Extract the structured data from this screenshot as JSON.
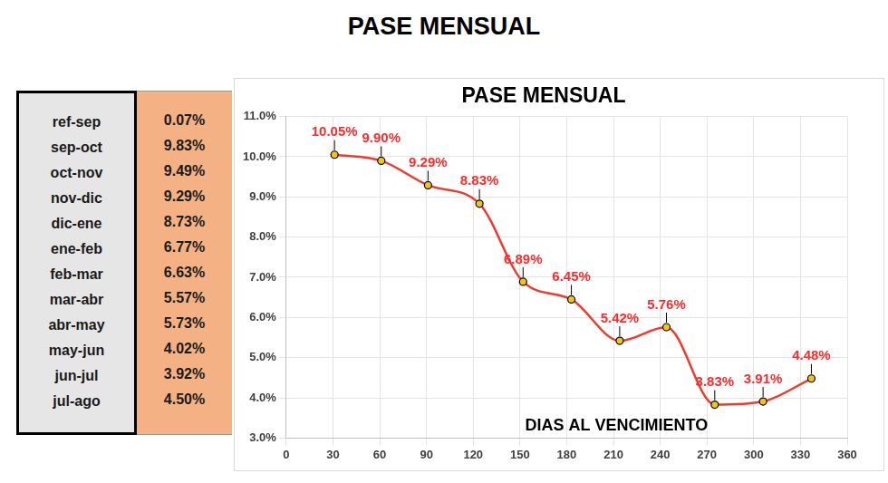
{
  "header": {
    "title": "PASE MENSUAL"
  },
  "table": {
    "rows": [
      [
        "ref-sep",
        "0.07%"
      ],
      [
        "sep-oct",
        "9.83%"
      ],
      [
        "oct-nov",
        "9.49%"
      ],
      [
        "nov-dic",
        "9.29%"
      ],
      [
        "dic-ene",
        "8.73%"
      ],
      [
        "ene-feb",
        "6.77%"
      ],
      [
        "feb-mar",
        "6.63%"
      ],
      [
        "mar-abr",
        "5.57%"
      ],
      [
        "abr-may",
        "5.73%"
      ],
      [
        "may-jun",
        "4.02%"
      ],
      [
        "jun-jul",
        "3.92%"
      ],
      [
        "jul-ago",
        "4.50%"
      ]
    ]
  },
  "chart_data": {
    "type": "line",
    "title": "PASE MENSUAL",
    "x_label": "DIAS AL VENCIMIENTO",
    "x": [
      31,
      61,
      91,
      124,
      152,
      183,
      214,
      244,
      275,
      306,
      337
    ],
    "values": [
      10.05,
      9.9,
      9.29,
      8.83,
      6.89,
      6.45,
      5.42,
      5.76,
      3.83,
      3.91,
      4.48
    ],
    "value_labels": [
      "10.05%",
      "9.90%",
      "9.29%",
      "8.83%",
      "6.89%",
      "6.45%",
      "5.42%",
      "5.76%",
      "3.83%",
      "3.91%",
      "4.48%"
    ],
    "color": "#ee3b30",
    "marker": "circle",
    "line_style": "solid",
    "data_labels": true,
    "grid": true,
    "xlim": [
      0,
      360
    ],
    "xticks": [
      0,
      30,
      60,
      90,
      120,
      150,
      180,
      210,
      240,
      270,
      300,
      330,
      360
    ],
    "ylim": [
      3,
      11
    ],
    "yticks": [
      {
        "value": 3,
        "label": "3.0%"
      },
      {
        "value": 4,
        "label": "4.0%"
      },
      {
        "value": 5,
        "label": "5.0%"
      },
      {
        "value": 6,
        "label": "6.0%"
      },
      {
        "value": 7,
        "label": "7.0%"
      },
      {
        "value": 8,
        "label": "8.0%"
      },
      {
        "value": 9,
        "label": "9.0%"
      },
      {
        "value": 10,
        "label": "10.0%"
      },
      {
        "value": 11,
        "label": "11.0%"
      }
    ]
  }
}
